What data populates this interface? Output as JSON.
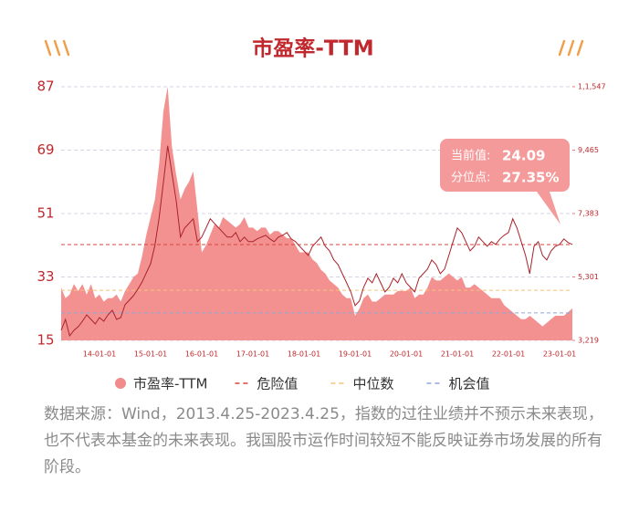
{
  "chart_data": {
    "type": "area_line",
    "title": "市盈率-TTM",
    "x": [
      "13-04-01",
      "13-05-01",
      "13-06-01",
      "13-07-01",
      "13-08-01",
      "13-09-01",
      "13-10-01",
      "13-11-01",
      "13-12-01",
      "14-01-01",
      "14-02-01",
      "14-03-01",
      "14-04-01",
      "14-05-01",
      "14-06-01",
      "14-07-01",
      "14-08-01",
      "14-09-01",
      "14-10-01",
      "14-11-01",
      "14-12-01",
      "15-01-01",
      "15-02-01",
      "15-03-01",
      "15-04-01",
      "15-05-01",
      "15-06-01",
      "15-07-01",
      "15-08-01",
      "15-09-01",
      "15-10-01",
      "15-11-01",
      "15-12-01",
      "16-01-01",
      "16-02-01",
      "16-03-01",
      "16-04-01",
      "16-05-01",
      "16-06-01",
      "16-07-01",
      "16-08-01",
      "16-09-01",
      "16-10-01",
      "16-11-01",
      "16-12-01",
      "17-01-01",
      "17-02-01",
      "17-03-01",
      "17-04-01",
      "17-05-01",
      "17-06-01",
      "17-07-01",
      "17-08-01",
      "17-09-01",
      "17-10-01",
      "17-11-01",
      "17-12-01",
      "18-01-01",
      "18-02-01",
      "18-03-01",
      "18-04-01",
      "18-05-01",
      "18-06-01",
      "18-07-01",
      "18-08-01",
      "18-09-01",
      "18-10-01",
      "18-11-01",
      "18-12-01",
      "19-01-01",
      "19-02-01",
      "19-03-01",
      "19-04-01",
      "19-05-01",
      "19-06-01",
      "19-07-01",
      "19-08-01",
      "19-09-01",
      "19-10-01",
      "19-11-01",
      "19-12-01",
      "20-01-01",
      "20-02-01",
      "20-03-01",
      "20-04-01",
      "20-05-01",
      "20-06-01",
      "20-07-01",
      "20-08-01",
      "20-09-01",
      "20-10-01",
      "20-11-01",
      "20-12-01",
      "21-01-01",
      "21-02-01",
      "21-03-01",
      "21-04-01",
      "21-05-01",
      "21-06-01",
      "21-07-01",
      "21-08-01",
      "21-09-01",
      "21-10-01",
      "21-11-01",
      "21-12-01",
      "22-01-01",
      "22-02-01",
      "22-03-01",
      "22-04-01",
      "22-05-01",
      "22-06-01",
      "22-07-01",
      "22-08-01",
      "22-09-01",
      "22-10-01",
      "22-11-01",
      "22-12-01",
      "23-01-01",
      "23-02-01",
      "23-03-01",
      "23-04-01"
    ],
    "xticks": [
      "14-01-01",
      "15-01-01",
      "16-01-01",
      "17-01-01",
      "18-01-01",
      "19-01-01",
      "20-01-01",
      "21-01-01",
      "22-01-01",
      "23-01-01"
    ],
    "series": [
      {
        "name": "市盈率-TTM",
        "color": "#f28b8b",
        "values": [
          30,
          27,
          28,
          31,
          29,
          31,
          28,
          31,
          27,
          28,
          26,
          27,
          27,
          28,
          26,
          29,
          31,
          33,
          34,
          39,
          45,
          50,
          55,
          65,
          80,
          87,
          70,
          62,
          55,
          58,
          60,
          63,
          52,
          40,
          42,
          45,
          48,
          47,
          50,
          49,
          48,
          47,
          48,
          50,
          47,
          47,
          46,
          47,
          47,
          45,
          46,
          46,
          45,
          44,
          44,
          42,
          40,
          40,
          40,
          38,
          37,
          35,
          34,
          32,
          31,
          30,
          28,
          27,
          27,
          22,
          24,
          27,
          28,
          26,
          26,
          27,
          28,
          28,
          28,
          29,
          29,
          29,
          30,
          27,
          28,
          28,
          30,
          33,
          32,
          32,
          33,
          34,
          33,
          32,
          33,
          30,
          30,
          31,
          30,
          29,
          28,
          27,
          27,
          27,
          25,
          24,
          23,
          22,
          21,
          21,
          22,
          21,
          20,
          19,
          20,
          21,
          22,
          22,
          22,
          23,
          24.09
        ]
      },
      {
        "color": "#a8232a",
        "axis": "y2",
        "values": [
          3549,
          3909,
          3369,
          3549,
          3669,
          3849,
          4059,
          3909,
          3759,
          3969,
          3849,
          4059,
          4209,
          3909,
          3969,
          4389,
          4539,
          4689,
          4899,
          5139,
          5439,
          5739,
          6339,
          7239,
          8409,
          9609,
          8709,
          7809,
          6609,
          6909,
          7059,
          7209,
          6459,
          6609,
          6909,
          7209,
          7059,
          6909,
          6759,
          6609,
          6609,
          6759,
          6459,
          6609,
          6459,
          6459,
          6549,
          6609,
          6669,
          6549,
          6459,
          6609,
          6669,
          6759,
          6549,
          6459,
          6309,
          6159,
          6009,
          6309,
          6459,
          6609,
          6309,
          6159,
          5859,
          5709,
          5409,
          5109,
          4809,
          4359,
          4509,
          4959,
          5259,
          5109,
          5409,
          5109,
          4809,
          4959,
          5259,
          5109,
          5409,
          5109,
          4959,
          4809,
          5259,
          5409,
          5559,
          5859,
          5709,
          5409,
          5559,
          6009,
          6459,
          6909,
          6759,
          6459,
          6159,
          6309,
          6609,
          6459,
          6309,
          6459,
          6369,
          6549,
          6669,
          6759,
          7209,
          6909,
          6459,
          6009,
          5409,
          6309,
          6459,
          6009,
          5859,
          6159,
          6309,
          6369,
          6549,
          6429,
          6369
        ]
      }
    ],
    "reference_lines": [
      {
        "name": "危险值",
        "value": 42.2,
        "color": "#d9453a"
      },
      {
        "name": "中位数",
        "value": 29.2,
        "color": "#f5c27a"
      },
      {
        "name": "机会值",
        "value": 22.8,
        "color": "#8ea6d8"
      }
    ],
    "ylim": [
      15,
      87
    ],
    "yticks": [
      15,
      33,
      51,
      69,
      87
    ],
    "y2lim": [
      3219,
      11547
    ],
    "y2ticks": [
      {
        "value": 3219,
        "label": "3,219"
      },
      {
        "value": 5301,
        "label": "5,301"
      },
      {
        "value": 7383,
        "label": "7,383"
      },
      {
        "value": 9465,
        "label": "9,465"
      },
      {
        "value": 11547,
        "label": "1,1,547"
      }
    ],
    "grid": true,
    "annotation": {
      "lines": [
        {
          "label": "当前值:",
          "value": "24.09"
        },
        {
          "label": "分位点:",
          "value": "27.35%"
        }
      ]
    }
  },
  "footnote": "数据来源：Wind，2013.4.25-2023.4.25，指数的过往业绩并不预示未来表现，也不代表本基金的未来表现。我国股市运作时间较短不能反映证券市场发展的所有阶段。"
}
